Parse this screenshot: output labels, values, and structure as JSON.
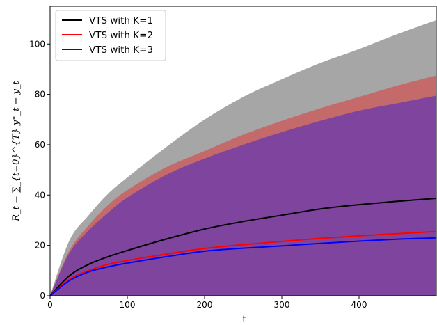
{
  "chart_data": {
    "type": "line",
    "title": "",
    "xlabel": "t",
    "ylabel": "R_t = ∑_{t=0}^{T} y*_t − y_t",
    "xlim": [
      0,
      500
    ],
    "ylim": [
      0,
      115
    ],
    "x_ticks": [
      0,
      100,
      200,
      300,
      400
    ],
    "y_ticks": [
      0,
      20,
      40,
      60,
      80,
      100
    ],
    "x_tick_labels": [
      "0",
      "100",
      "200",
      "300",
      "400"
    ],
    "y_tick_labels": [
      "0",
      "20",
      "40",
      "60",
      "80",
      "100"
    ],
    "grid": false,
    "legend": "top-left",
    "x": [
      0,
      25,
      50,
      75,
      100,
      150,
      200,
      250,
      300,
      350,
      400,
      450,
      500
    ],
    "series": [
      {
        "name": "VTS with K=1",
        "color": "#000000",
        "band_color": "#a6a6a6",
        "values": [
          0,
          8,
          12.5,
          15.5,
          18,
          22.5,
          26.5,
          29.5,
          32,
          34.5,
          36.2,
          37.5,
          38.7
        ],
        "band_upper": [
          0,
          22,
          32,
          40.5,
          47,
          59,
          70,
          79,
          86,
          92.5,
          98,
          104,
          109.5
        ]
      },
      {
        "name": "VTS with K=2",
        "color": "#ff0000",
        "band_color": "#c46a6a",
        "values": [
          0,
          6.5,
          10,
          12.5,
          14,
          16.5,
          18.8,
          20.3,
          21.6,
          22.8,
          23.8,
          24.7,
          25.5
        ],
        "band_upper": [
          0,
          18,
          28,
          36,
          42,
          51,
          57.5,
          64,
          69.5,
          74.5,
          79,
          83.5,
          87.5
        ]
      },
      {
        "name": "VTS with K=3",
        "color": "#0000ff",
        "band_color": "#7f459e",
        "values": [
          0,
          6,
          9.5,
          11.5,
          13,
          15.5,
          17.7,
          18.9,
          19.8,
          20.8,
          21.7,
          22.5,
          23
        ],
        "band_upper": [
          0,
          17,
          26,
          33,
          39,
          48,
          54.5,
          60,
          65,
          69.5,
          73.5,
          76.5,
          79.5
        ]
      }
    ]
  }
}
